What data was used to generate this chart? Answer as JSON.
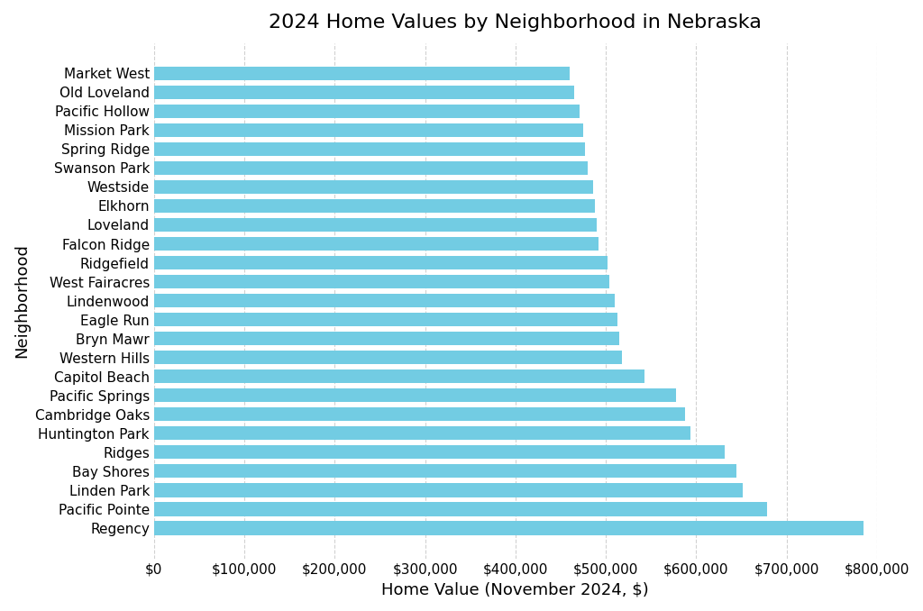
{
  "title": "2024 Home Values by Neighborhood in Nebraska",
  "xlabel": "Home Value (November 2024, $)",
  "ylabel": "Neighborhood",
  "bar_color": "#72cce3",
  "background_color": "#ffffff",
  "grid_color": "#cccccc",
  "neighborhoods": [
    "Market West",
    "Old Loveland",
    "Pacific Hollow",
    "Mission Park",
    "Spring Ridge",
    "Swanson Park",
    "Westside",
    "Elkhorn",
    "Loveland",
    "Falcon Ridge",
    "Ridgefield",
    "West Fairacres",
    "Lindenwood",
    "Eagle Run",
    "Bryn Mawr",
    "Western Hills",
    "Capitol Beach",
    "Pacific Springs",
    "Cambridge Oaks",
    "Huntington Park",
    "Ridges",
    "Bay Shores",
    "Linden Park",
    "Pacific Pointe",
    "Regency"
  ],
  "values": [
    460000,
    465000,
    471000,
    475000,
    477000,
    480000,
    486000,
    488000,
    490000,
    492000,
    502000,
    504000,
    510000,
    513000,
    515000,
    518000,
    543000,
    578000,
    588000,
    594000,
    632000,
    645000,
    652000,
    678000,
    785000
  ],
  "xlim": [
    0,
    800000
  ],
  "xticks": [
    0,
    100000,
    200000,
    300000,
    400000,
    500000,
    600000,
    700000,
    800000
  ],
  "xtick_labels": [
    "$0",
    "$100,000",
    "$200,000",
    "$300,000",
    "$400,000",
    "$500,000",
    "$600,000",
    "$700,000",
    "$800,000"
  ],
  "title_fontsize": 16,
  "label_fontsize": 13,
  "tick_fontsize": 11
}
